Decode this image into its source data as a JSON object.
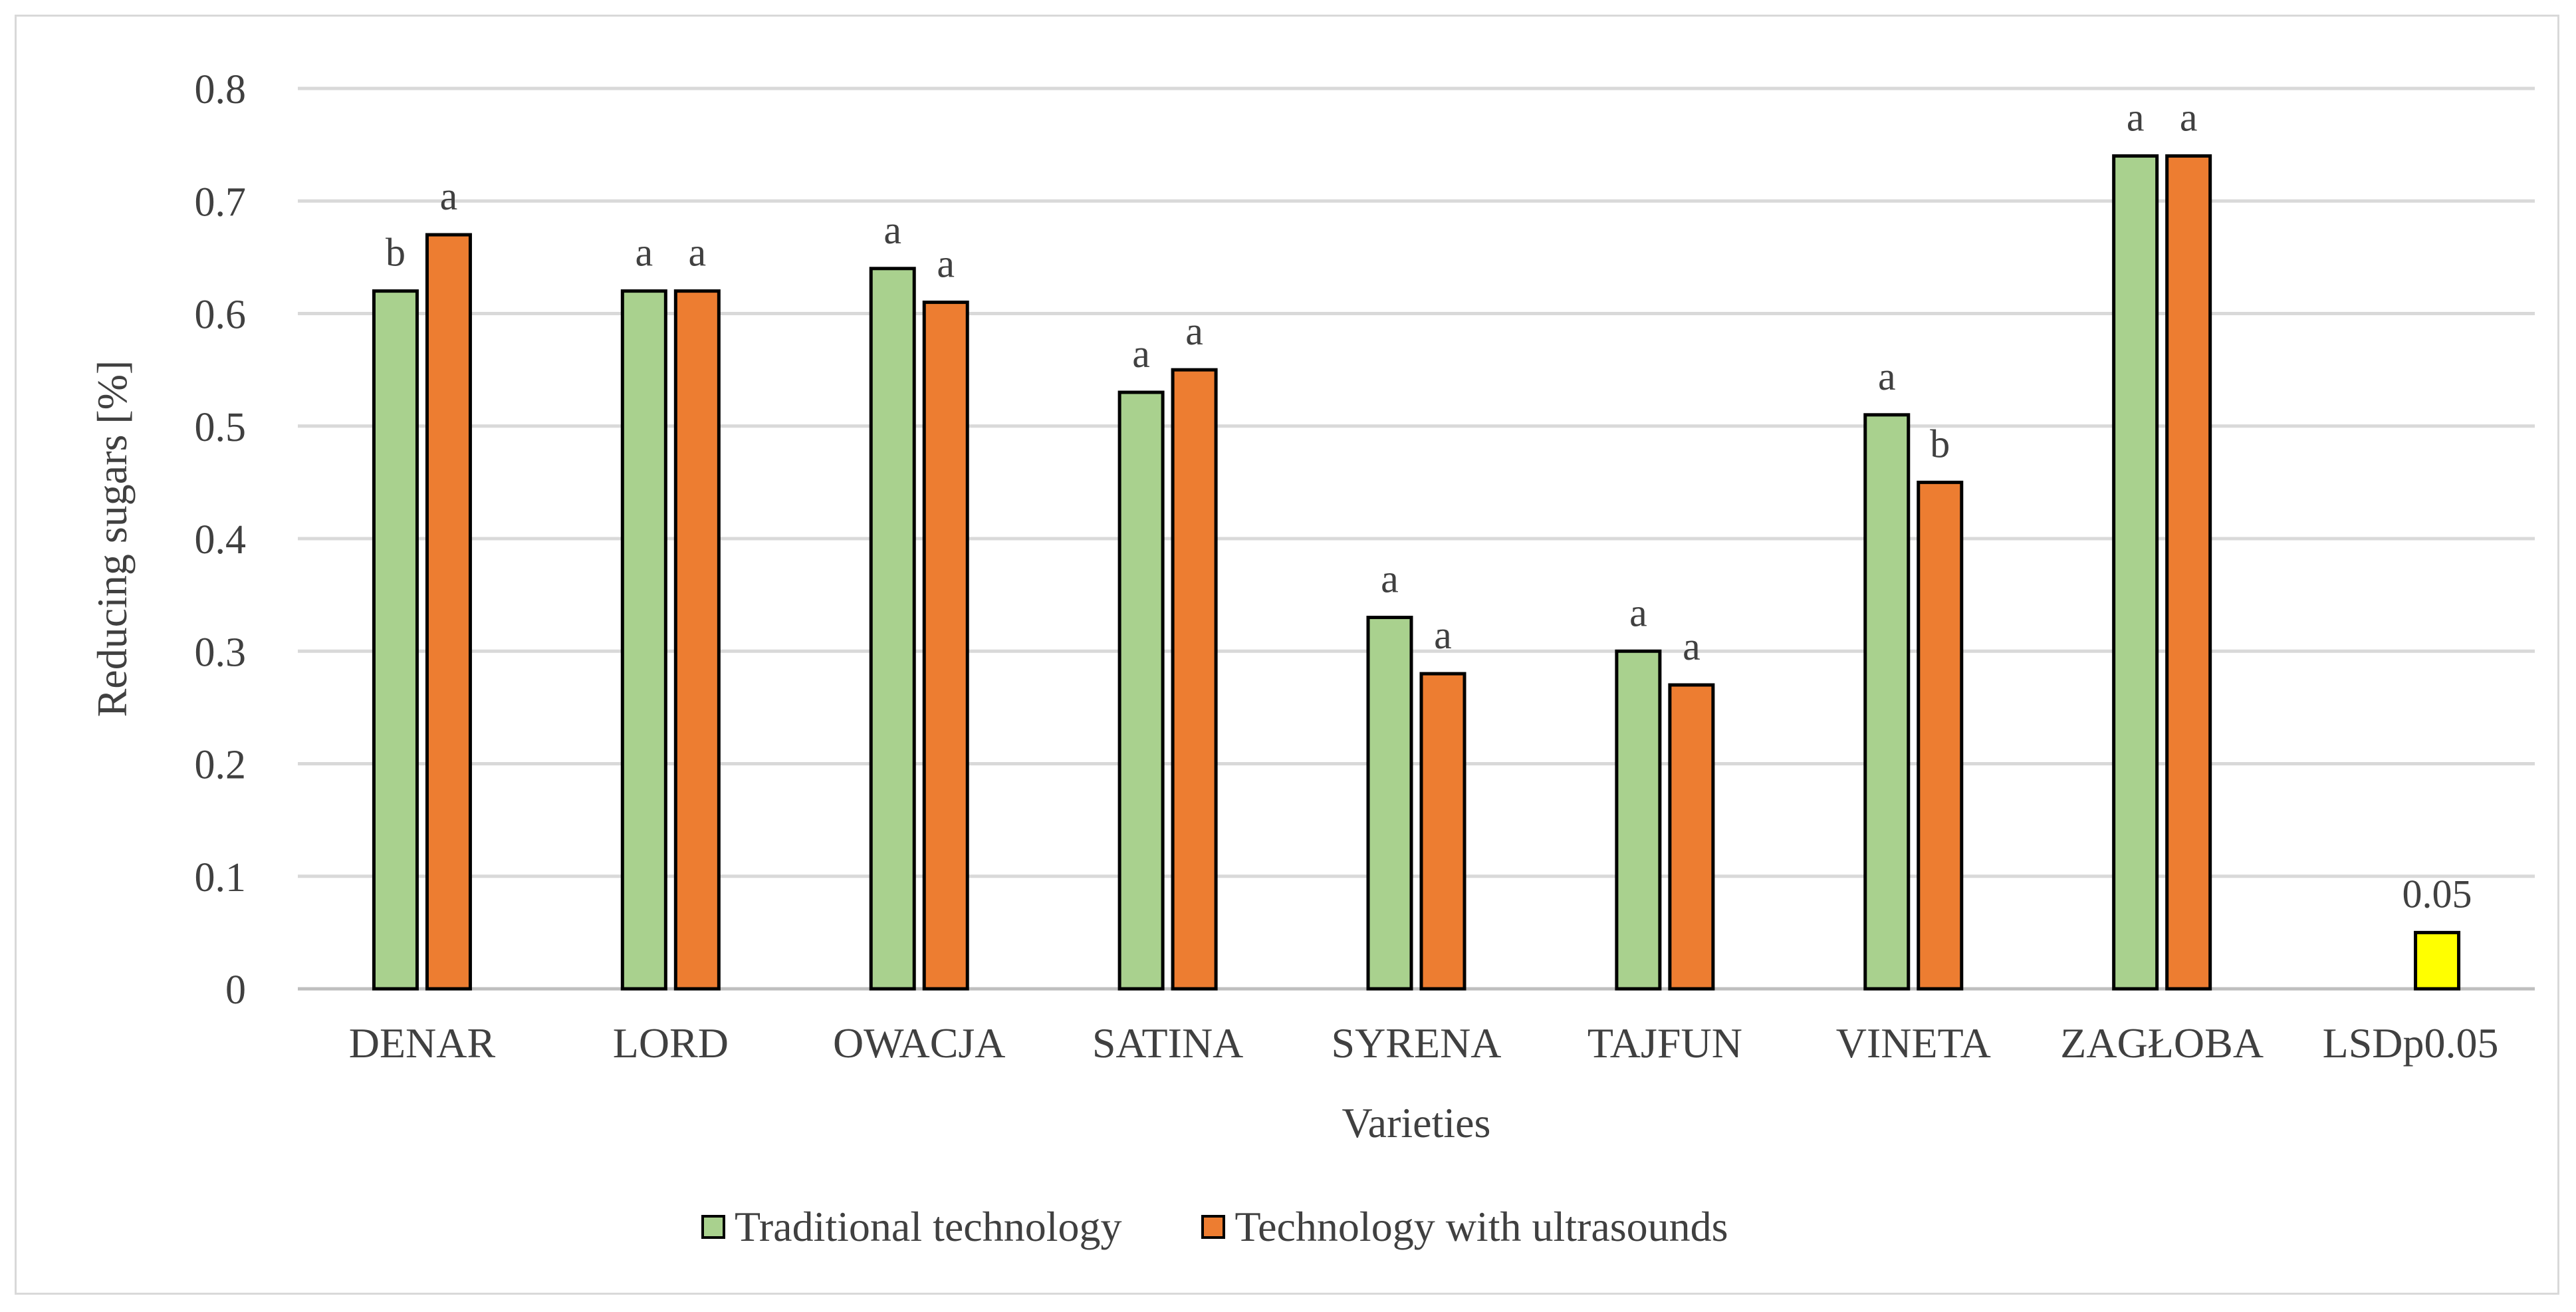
{
  "chart_data": {
    "type": "bar",
    "title": "",
    "xlabel": "Varieties",
    "ylabel": "Reducing sugars [%]",
    "ylim": [
      0,
      0.8
    ],
    "yticks": [
      "0",
      "0.1",
      "0.2",
      "0.3",
      "0.4",
      "0.5",
      "0.6",
      "0.7",
      "0.8"
    ],
    "grid": true,
    "categories": [
      "DENAR",
      "LORD",
      "OWACJA",
      "SATINA",
      "SYRENA",
      "TAJFUN",
      "VINETA",
      "ZAGŁOBA",
      "LSDp0.05"
    ],
    "series": [
      {
        "name": "Traditional technology",
        "color": "#a9d18e",
        "values": [
          0.62,
          0.62,
          0.64,
          0.53,
          0.33,
          0.3,
          0.51,
          0.74,
          null
        ],
        "labels": [
          "b",
          "a",
          "a",
          "a",
          "a",
          "a",
          "a",
          "a",
          null
        ]
      },
      {
        "name": "Technology with ultrasounds",
        "color": "#ed7d31",
        "values": [
          0.67,
          0.62,
          0.61,
          0.55,
          0.28,
          0.27,
          0.45,
          0.74,
          null
        ],
        "labels": [
          "a",
          "a",
          "a",
          "a",
          "a",
          "a",
          "b",
          "a",
          null
        ]
      }
    ],
    "lsd": {
      "category": "LSDp0.05",
      "value": 0.05,
      "label": "0.05",
      "color": "#ffff00"
    },
    "legend_position": "bottom"
  },
  "legend": {
    "items": [
      {
        "label": "Traditional technology",
        "color": "#a9d18e"
      },
      {
        "label": "Technology with ultrasounds",
        "color": "#ed7d31"
      }
    ]
  }
}
